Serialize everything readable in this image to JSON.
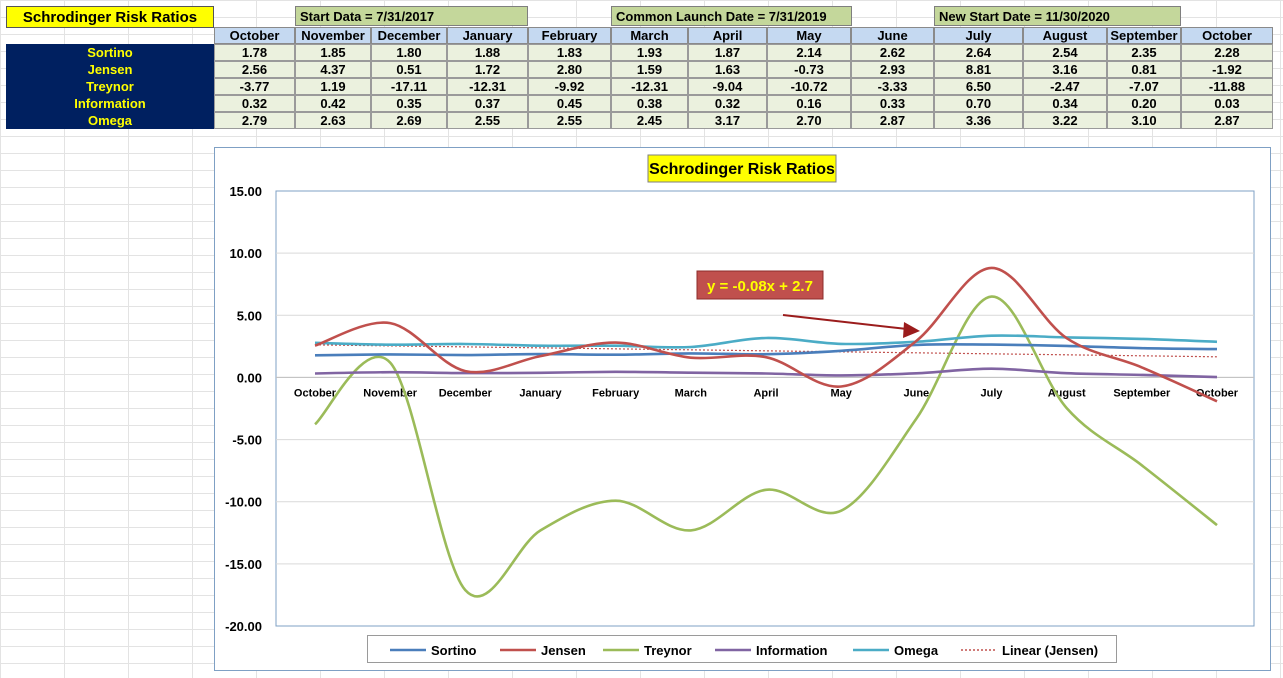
{
  "sheet": {
    "title": "Schrodinger Risk Ratios",
    "start_label": "Start Data = 7/31/2017",
    "launch_label": "Common Launch Date = 7/31/2019",
    "new_start_label": "New Start Date = 11/30/2020"
  },
  "table": {
    "months": [
      "October",
      "November",
      "December",
      "January",
      "February",
      "March",
      "April",
      "May",
      "June",
      "July",
      "August",
      "September",
      "October"
    ],
    "rows": [
      {
        "label": "Sortino",
        "values": [
          "1.78",
          "1.85",
          "1.80",
          "1.88",
          "1.83",
          "1.93",
          "1.87",
          "2.14",
          "2.62",
          "2.64",
          "2.54",
          "2.35",
          "2.28"
        ]
      },
      {
        "label": "Jensen",
        "values": [
          "2.56",
          "4.37",
          "0.51",
          "1.72",
          "2.80",
          "1.59",
          "1.63",
          "-0.73",
          "2.93",
          "8.81",
          "3.16",
          "0.81",
          "-1.92"
        ]
      },
      {
        "label": "Treynor",
        "values": [
          "-3.77",
          "1.19",
          "-17.11",
          "-12.31",
          "-9.92",
          "-12.31",
          "-9.04",
          "-10.72",
          "-3.33",
          "6.50",
          "-2.47",
          "-7.07",
          "-11.88"
        ]
      },
      {
        "label": "Information",
        "values": [
          "0.32",
          "0.42",
          "0.35",
          "0.37",
          "0.45",
          "0.38",
          "0.32",
          "0.16",
          "0.33",
          "0.70",
          "0.34",
          "0.20",
          "0.03"
        ]
      },
      {
        "label": "Omega",
        "values": [
          "2.79",
          "2.63",
          "2.69",
          "2.55",
          "2.55",
          "2.45",
          "3.17",
          "2.70",
          "2.87",
          "3.36",
          "3.22",
          "3.10",
          "2.87"
        ]
      }
    ]
  },
  "chart_data": {
    "type": "line",
    "title": "Schrodinger Risk Ratios",
    "categories": [
      "October",
      "November",
      "December",
      "January",
      "February",
      "March",
      "April",
      "May",
      "June",
      "July",
      "August",
      "September",
      "October"
    ],
    "series": [
      {
        "name": "Sortino",
        "color": "#4a7ebb",
        "values": [
          1.78,
          1.85,
          1.8,
          1.88,
          1.83,
          1.93,
          1.87,
          2.14,
          2.62,
          2.64,
          2.54,
          2.35,
          2.28
        ]
      },
      {
        "name": "Jensen",
        "color": "#c0504d",
        "values": [
          2.56,
          4.37,
          0.51,
          1.72,
          2.8,
          1.59,
          1.63,
          -0.73,
          2.93,
          8.81,
          3.16,
          0.81,
          -1.92
        ]
      },
      {
        "name": "Treynor",
        "color": "#9bbb59",
        "values": [
          -3.77,
          1.19,
          -17.11,
          -12.31,
          -9.92,
          -12.31,
          -9.04,
          -10.72,
          -3.33,
          6.5,
          -2.47,
          -7.07,
          -11.88
        ]
      },
      {
        "name": "Information",
        "color": "#8064a2",
        "values": [
          0.32,
          0.42,
          0.35,
          0.37,
          0.45,
          0.38,
          0.32,
          0.16,
          0.33,
          0.7,
          0.34,
          0.2,
          0.03
        ]
      },
      {
        "name": "Omega",
        "color": "#4bacc6",
        "values": [
          2.79,
          2.63,
          2.69,
          2.55,
          2.55,
          2.45,
          3.17,
          2.7,
          2.87,
          3.36,
          3.22,
          3.1,
          2.87
        ]
      }
    ],
    "trendline": {
      "name": "Linear (Jensen)",
      "slope": -0.08,
      "intercept": 2.7,
      "color": "#c0504d"
    },
    "annotation": {
      "text": "y = -0.08x + 2.7",
      "background": "#c0504d",
      "text_color": "#ffff00"
    },
    "ylim": [
      -20,
      15
    ],
    "yticks": [
      "15.00",
      "10.00",
      "5.00",
      "0.00",
      "-5.00",
      "-10.00",
      "-15.00",
      "-20.00"
    ],
    "grid": true,
    "legend_position": "bottom"
  }
}
